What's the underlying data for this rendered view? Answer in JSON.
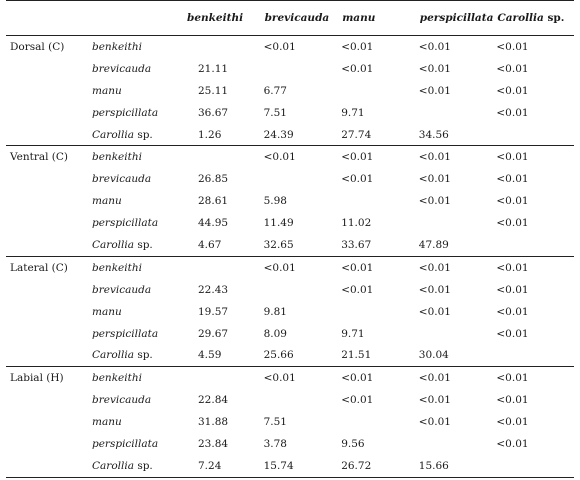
{
  "header": {
    "cols": [
      {
        "name": "benkeithi",
        "suffix": ""
      },
      {
        "name": "brevicauda",
        "suffix": ""
      },
      {
        "name": "manu",
        "suffix": ""
      },
      {
        "name": "perspicillata",
        "suffix": ""
      },
      {
        "name": "Carollia",
        "suffix": " sp."
      }
    ]
  },
  "sections": [
    {
      "label": "Dorsal (C)",
      "rows": [
        {
          "species": "benkeithi",
          "suffix": "",
          "values": [
            "",
            "<0.01",
            "<0.01",
            "<0.01",
            "<0.01"
          ]
        },
        {
          "species": "brevicauda",
          "suffix": "",
          "values": [
            "21.11",
            "",
            "<0.01",
            "<0.01",
            "<0.01"
          ]
        },
        {
          "species": "manu",
          "suffix": "",
          "values": [
            "25.11",
            "6.77",
            "",
            "<0.01",
            "<0.01"
          ]
        },
        {
          "species": "perspicillata",
          "suffix": "",
          "values": [
            "36.67",
            "7.51",
            "9.71",
            "",
            "<0.01"
          ]
        },
        {
          "species": "Carollia",
          "suffix": " sp.",
          "values": [
            "1.26",
            "24.39",
            "27.74",
            "34.56",
            ""
          ]
        }
      ]
    },
    {
      "label": "Ventral (C)",
      "rows": [
        {
          "species": "benkeithi",
          "suffix": "",
          "values": [
            "",
            "<0.01",
            "<0.01",
            "<0.01",
            "<0.01"
          ]
        },
        {
          "species": "brevicauda",
          "suffix": "",
          "values": [
            "26.85",
            "",
            "<0.01",
            "<0.01",
            "<0.01"
          ]
        },
        {
          "species": "manu",
          "suffix": "",
          "values": [
            "28.61",
            "5.98",
            "",
            "<0.01",
            "<0.01"
          ]
        },
        {
          "species": "perspicillata",
          "suffix": "",
          "values": [
            "44.95",
            "11.49",
            "11.02",
            "",
            "<0.01"
          ]
        },
        {
          "species": "Carollia",
          "suffix": " sp.",
          "values": [
            "4.67",
            "32.65",
            "33.67",
            "47.89",
            ""
          ]
        }
      ]
    },
    {
      "label": "Lateral (C)",
      "rows": [
        {
          "species": "benkeithi",
          "suffix": "",
          "values": [
            "",
            "<0.01",
            "<0.01",
            "<0.01",
            "<0.01"
          ]
        },
        {
          "species": "brevicauda",
          "suffix": "",
          "values": [
            "22.43",
            "",
            "<0.01",
            "<0.01",
            "<0.01"
          ]
        },
        {
          "species": "manu",
          "suffix": "",
          "values": [
            "19.57",
            "9.81",
            "",
            "<0.01",
            "<0.01"
          ]
        },
        {
          "species": "perspicillata",
          "suffix": "",
          "values": [
            "29.67",
            "8.09",
            "9.71",
            "",
            "<0.01"
          ]
        },
        {
          "species": "Carollia",
          "suffix": " sp.",
          "values": [
            "4.59",
            "25.66",
            "21.51",
            "30.04",
            ""
          ]
        }
      ]
    },
    {
      "label": "Labial (H)",
      "rows": [
        {
          "species": "benkeithi",
          "suffix": "",
          "values": [
            "",
            "<0.01",
            "<0.01",
            "<0.01",
            "<0.01"
          ]
        },
        {
          "species": "brevicauda",
          "suffix": "",
          "values": [
            "22.84",
            "",
            "<0.01",
            "<0.01",
            "<0.01"
          ]
        },
        {
          "species": "manu",
          "suffix": "",
          "values": [
            "31.88",
            "7.51",
            "",
            "<0.01",
            "<0.01"
          ]
        },
        {
          "species": "perspicillata",
          "suffix": "",
          "values": [
            "23.84",
            "3.78",
            "9.56",
            "",
            "<0.01"
          ]
        },
        {
          "species": "Carollia",
          "suffix": " sp.",
          "values": [
            "7.24",
            "15.74",
            "26.72",
            "15.66",
            ""
          ]
        }
      ]
    }
  ]
}
